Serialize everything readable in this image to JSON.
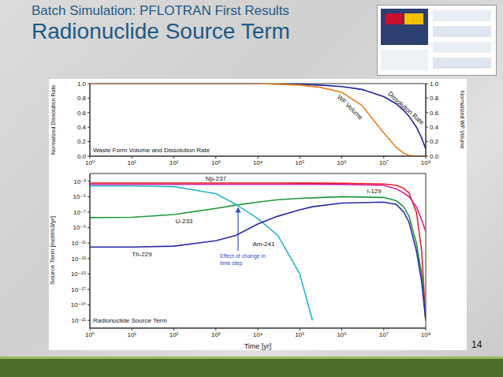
{
  "slide": {
    "title": "Batch Simulation: PFLOTRAN First Results",
    "subtitle": "Radionuclide Source Term",
    "page": "14"
  },
  "chart_data": [
    {
      "type": "line",
      "title": "Waste Form Volume and Dissolution Rate",
      "y_label": "Normalized Dissolution Rate",
      "y2_label": "Normalized WF Volume",
      "log": "x",
      "grid": false,
      "x": [
        1,
        10,
        100,
        1000,
        10000,
        100000,
        300000,
        1000000,
        3000000,
        10000000,
        20000000,
        30000000,
        40000000,
        60000000,
        80000000,
        100000000
      ],
      "xlim": [
        1,
        100000000
      ],
      "xticks": [
        {
          "value": 1,
          "label": "10⁰"
        },
        {
          "value": 10,
          "label": "10¹"
        },
        {
          "value": 100,
          "label": "10²"
        },
        {
          "value": 1000,
          "label": "10³"
        },
        {
          "value": 10000,
          "label": "10⁴"
        },
        {
          "value": 100000,
          "label": "10⁵"
        },
        {
          "value": 1000000,
          "label": "10⁶"
        },
        {
          "value": 10000000,
          "label": "10⁷"
        },
        {
          "value": 100000000,
          "label": "10⁸"
        }
      ],
      "ylim": [
        0,
        1
      ],
      "yticks": [
        {
          "value": 0,
          "label": "0.0"
        },
        0.2,
        0.4,
        0.6,
        0.8,
        {
          "value": 1,
          "label": "1.0"
        }
      ],
      "y2lim": [
        0,
        1
      ],
      "y2ticks": [
        {
          "value": 0,
          "label": "0.0"
        },
        0.2,
        0.4,
        0.6,
        0.8,
        {
          "value": 1,
          "label": "1.0"
        }
      ],
      "series": [
        {
          "name": "Dissolution Rate",
          "color": "#20209a",
          "values": [
            1,
            1,
            1,
            1,
            1,
            0.99,
            0.98,
            0.96,
            0.92,
            0.82,
            0.72,
            0.63,
            0.55,
            0.4,
            0.25,
            0.1
          ]
        },
        {
          "name": "WF Volume",
          "color": "#e8801c",
          "axis": "y2",
          "values": [
            1,
            1,
            1,
            1,
            1,
            0.98,
            0.95,
            0.88,
            0.7,
            0.32,
            0.12,
            0.04,
            0.01,
            0,
            0,
            0
          ]
        }
      ]
    },
    {
      "type": "line",
      "title": "Radionuclide Source Term",
      "x_label": "Time [yr]",
      "y_label": "Source Term [mol/m3/yr]",
      "log": true,
      "grid": false,
      "annotations": [
        "Effect of change in time step"
      ],
      "x": [
        1,
        10,
        100,
        1000,
        3000,
        10000,
        30000,
        100000,
        200000,
        1000000,
        10000000,
        20000000,
        30000000,
        40000000,
        60000000,
        80000000,
        100000000
      ],
      "xlim": [
        1,
        100000000
      ],
      "xticks": [
        {
          "value": 1,
          "label": "10⁰"
        },
        {
          "value": 10,
          "label": "10¹"
        },
        {
          "value": 100,
          "label": "10²"
        },
        {
          "value": 1000,
          "label": "10³"
        },
        {
          "value": 10000,
          "label": "10⁴"
        },
        {
          "value": 100000,
          "label": "10⁵"
        },
        {
          "value": 1000000,
          "label": "10⁶"
        },
        {
          "value": 10000000,
          "label": "10⁷"
        },
        {
          "value": 100000000,
          "label": "10⁸"
        }
      ],
      "ylim": [
        1e-22,
        0.01
      ],
      "yticks": [
        {
          "value": 0.001,
          "label": "10⁻³"
        },
        {
          "value": 1e-05,
          "label": "10⁻⁵"
        },
        {
          "value": 1e-07,
          "label": "10⁻⁷"
        },
        {
          "value": 1e-09,
          "label": "10⁻⁹"
        },
        {
          "value": 1e-11,
          "label": "10⁻¹¹"
        },
        {
          "value": 1e-13,
          "label": "10⁻¹³"
        },
        {
          "value": 1e-15,
          "label": "10⁻¹⁵"
        },
        {
          "value": 1e-17,
          "label": "10⁻¹⁷"
        },
        {
          "value": 1e-19,
          "label": "10⁻¹⁹"
        },
        {
          "value": 1e-21,
          "label": "10⁻²¹"
        }
      ],
      "series": [
        {
          "name": "Np-237",
          "color": "#e3202a",
          "values": [
            0.0006,
            0.0006,
            0.0006,
            0.0006,
            0.0006,
            0.0006,
            0.0006,
            0.00058,
            0.00058,
            0.00055,
            0.00045,
            0.0003,
            0.00012,
            3e-05,
            1e-07,
            1e-12,
            1e-21
          ]
        },
        {
          "name": "I-129",
          "color": "#d4239c",
          "values": [
            0.0004,
            0.0004,
            0.0004,
            0.0004,
            0.0004,
            0.0004,
            0.0004,
            0.0004,
            0.0004,
            0.00038,
            0.0003,
            0.0001,
            3e-05,
            1e-05,
            5e-07,
            1e-08,
            3e-10
          ]
        },
        {
          "name": "U-233",
          "color": "#1f9a3a",
          "values": [
            2e-08,
            2.2e-08,
            5e-08,
            3e-07,
            8e-07,
            2e-06,
            4e-06,
            6e-06,
            7e-06,
            1e-05,
            8e-06,
            3e-06,
            5e-07,
            3e-08,
            1e-11,
            1e-15,
            1e-21
          ]
        },
        {
          "name": "Am-241",
          "color": "#25b4c8",
          "values": [
            0.00025,
            0.00025,
            0.0002,
            2.5e-05,
            1e-06,
            1.5e-08,
            1e-10,
            1e-15,
            1e-21,
            null,
            null,
            null,
            null,
            null,
            null,
            null,
            null
          ]
        },
        {
          "name": "Th-229",
          "color": "#2a2aa6",
          "values": [
            3e-12,
            3e-12,
            4e-12,
            2e-11,
            1e-10,
            3e-09,
            3e-08,
            2e-07,
            5e-07,
            1.5e-06,
            2e-06,
            1e-06,
            1e-07,
            5e-09,
            1e-12,
            1e-16,
            1e-21
          ]
        }
      ]
    }
  ]
}
